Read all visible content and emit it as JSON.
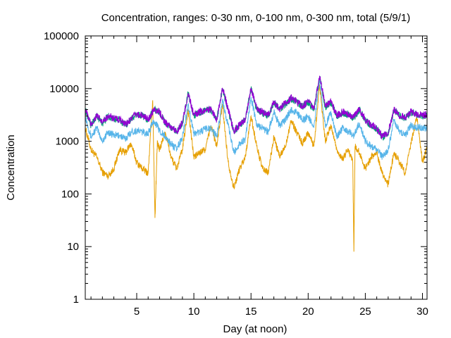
{
  "chart_data": {
    "type": "line",
    "title": "Concentration, ranges: 0-30 nm, 0-100 nm, 0-300 nm, total (5/9/1)",
    "xlabel": "Day (at noon)",
    "ylabel": "Concentration",
    "xlim": [
      0.5,
      30.4
    ],
    "ylim": [
      1,
      100000
    ],
    "yscale": "log",
    "grid": false,
    "legend": "none",
    "x_ticks": [
      5,
      10,
      15,
      20,
      25,
      30
    ],
    "y_ticks": [
      {
        "value": 1,
        "label": "1"
      },
      {
        "value": 10,
        "label": "10"
      },
      {
        "value": 100,
        "label": "100"
      },
      {
        "value": 1000,
        "label": "1000"
      },
      {
        "value": 10000,
        "label": "10000"
      },
      {
        "value": 100000,
        "label": "100000"
      }
    ],
    "series": [
      {
        "color": "#e69f00",
        "x": [
          0.5,
          1.0,
          1.5,
          2.0,
          2.5,
          3.0,
          3.5,
          4.0,
          4.5,
          5.0,
          5.5,
          6.0,
          6.4,
          6.6,
          6.8,
          7.0,
          7.5,
          8.0,
          8.5,
          9.0,
          9.5,
          10.0,
          10.5,
          11.0,
          11.5,
          12.0,
          12.5,
          13.0,
          13.5,
          14.0,
          14.5,
          15.0,
          15.5,
          16.0,
          16.5,
          17.0,
          17.5,
          18.0,
          18.5,
          19.0,
          19.5,
          20.0,
          20.5,
          21.0,
          21.5,
          22.0,
          22.5,
          23.0,
          23.5,
          23.9,
          24.0,
          24.1,
          24.5,
          25.0,
          25.5,
          26.0,
          26.5,
          27.0,
          27.5,
          28.0,
          28.5,
          29.0,
          29.5,
          30.0,
          30.4
        ],
        "y": [
          1800,
          700,
          500,
          260,
          220,
          300,
          700,
          600,
          900,
          400,
          300,
          250,
          6000,
          35,
          900,
          700,
          1500,
          500,
          300,
          700,
          4000,
          500,
          600,
          700,
          2000,
          800,
          5000,
          400,
          130,
          300,
          500,
          3000,
          800,
          300,
          250,
          1200,
          500,
          800,
          2500,
          1500,
          900,
          1500,
          800,
          12000,
          1000,
          2000,
          700,
          450,
          700,
          400,
          8,
          800,
          600,
          300,
          500,
          600,
          250,
          150,
          600,
          400,
          250,
          900,
          3000,
          400,
          700
        ]
      },
      {
        "color": "#56b4e9",
        "x": [
          0.5,
          1.0,
          1.5,
          2.0,
          2.5,
          3.0,
          3.5,
          4.0,
          4.5,
          5.0,
          5.5,
          6.0,
          6.5,
          7.0,
          7.5,
          8.0,
          8.5,
          9.0,
          9.5,
          10.0,
          10.5,
          11.0,
          11.5,
          12.0,
          12.5,
          13.0,
          13.5,
          14.0,
          14.5,
          15.0,
          15.5,
          16.0,
          16.5,
          17.0,
          17.5,
          18.0,
          18.5,
          19.0,
          19.5,
          20.0,
          20.5,
          21.0,
          21.5,
          22.0,
          22.5,
          23.0,
          23.5,
          24.0,
          24.5,
          25.0,
          25.5,
          26.0,
          26.5,
          27.0,
          27.5,
          28.0,
          28.5,
          29.0,
          29.5,
          30.0,
          30.4
        ],
        "y": [
          3000,
          1200,
          1800,
          1000,
          1500,
          1300,
          1300,
          1100,
          1500,
          1600,
          1500,
          1400,
          2500,
          1600,
          1200,
          900,
          700,
          1200,
          5000,
          1400,
          1500,
          1700,
          1800,
          1200,
          6000,
          2000,
          600,
          900,
          1100,
          7000,
          2000,
          1800,
          1500,
          3500,
          2000,
          2500,
          4000,
          3500,
          2500,
          3000,
          1800,
          15000,
          2000,
          3500,
          1200,
          1800,
          1500,
          1300,
          2200,
          1000,
          800,
          700,
          500,
          700,
          2500,
          1500,
          1300,
          2000,
          1800,
          1800,
          1700
        ]
      },
      {
        "color": "#009e73",
        "x": [
          0.5,
          1.0,
          1.5,
          2.0,
          2.5,
          3.0,
          3.5,
          4.0,
          4.5,
          5.0,
          5.5,
          6.0,
          6.5,
          7.0,
          7.5,
          8.0,
          8.5,
          9.0,
          9.5,
          10.0,
          10.5,
          11.0,
          11.5,
          12.0,
          12.5,
          13.0,
          13.5,
          14.0,
          14.5,
          15.0,
          15.5,
          16.0,
          16.5,
          17.0,
          17.5,
          18.0,
          18.5,
          19.0,
          19.5,
          20.0,
          20.5,
          21.0,
          21.5,
          22.0,
          22.5,
          23.0,
          23.5,
          24.0,
          24.5,
          25.0,
          25.5,
          26.0,
          26.5,
          27.0,
          27.5,
          28.0,
          28.5,
          29.0,
          29.5,
          30.0,
          30.4
        ],
        "y": [
          4000,
          2000,
          3000,
          2200,
          3000,
          2600,
          2500,
          2000,
          2600,
          3200,
          3000,
          2500,
          4000,
          3500,
          2200,
          1800,
          1500,
          2200,
          8000,
          3000,
          3500,
          3800,
          4000,
          2500,
          10000,
          4000,
          1500,
          2000,
          2500,
          10000,
          4000,
          3500,
          3000,
          5500,
          4000,
          5000,
          6500,
          5500,
          4500,
          5500,
          4000,
          17000,
          4500,
          5500,
          3000,
          3500,
          3200,
          2800,
          4000,
          2500,
          2000,
          1700,
          1200,
          1400,
          4000,
          3000,
          2800,
          3500,
          3200,
          3000,
          3200
        ]
      },
      {
        "color": "#9400d3",
        "x": [
          0.5,
          1.0,
          1.5,
          2.0,
          2.5,
          3.0,
          3.5,
          4.0,
          4.5,
          5.0,
          5.5,
          6.0,
          6.5,
          7.0,
          7.5,
          8.0,
          8.5,
          9.0,
          9.5,
          10.0,
          10.5,
          11.0,
          11.5,
          12.0,
          12.5,
          13.0,
          13.5,
          14.0,
          14.5,
          15.0,
          15.5,
          16.0,
          16.5,
          17.0,
          17.5,
          18.0,
          18.5,
          19.0,
          19.5,
          20.0,
          20.5,
          21.0,
          21.5,
          22.0,
          22.5,
          23.0,
          23.5,
          24.0,
          24.5,
          25.0,
          25.5,
          26.0,
          26.5,
          27.0,
          27.5,
          28.0,
          28.5,
          29.0,
          29.5,
          30.0,
          30.4
        ],
        "y": [
          4100,
          2050,
          3080,
          2260,
          3080,
          2670,
          2570,
          2050,
          2670,
          3280,
          3080,
          2570,
          4100,
          3600,
          2260,
          1850,
          1540,
          2260,
          8200,
          3080,
          3600,
          3900,
          4100,
          2570,
          10300,
          4100,
          1540,
          2050,
          2570,
          10300,
          4100,
          3600,
          3080,
          5650,
          4100,
          5150,
          6700,
          5650,
          4630,
          5650,
          4100,
          17500,
          4630,
          5650,
          3080,
          3600,
          3290,
          2880,
          4100,
          2570,
          2050,
          1750,
          1230,
          1440,
          4100,
          3080,
          2880,
          3600,
          3290,
          3080,
          3290
        ]
      }
    ]
  }
}
